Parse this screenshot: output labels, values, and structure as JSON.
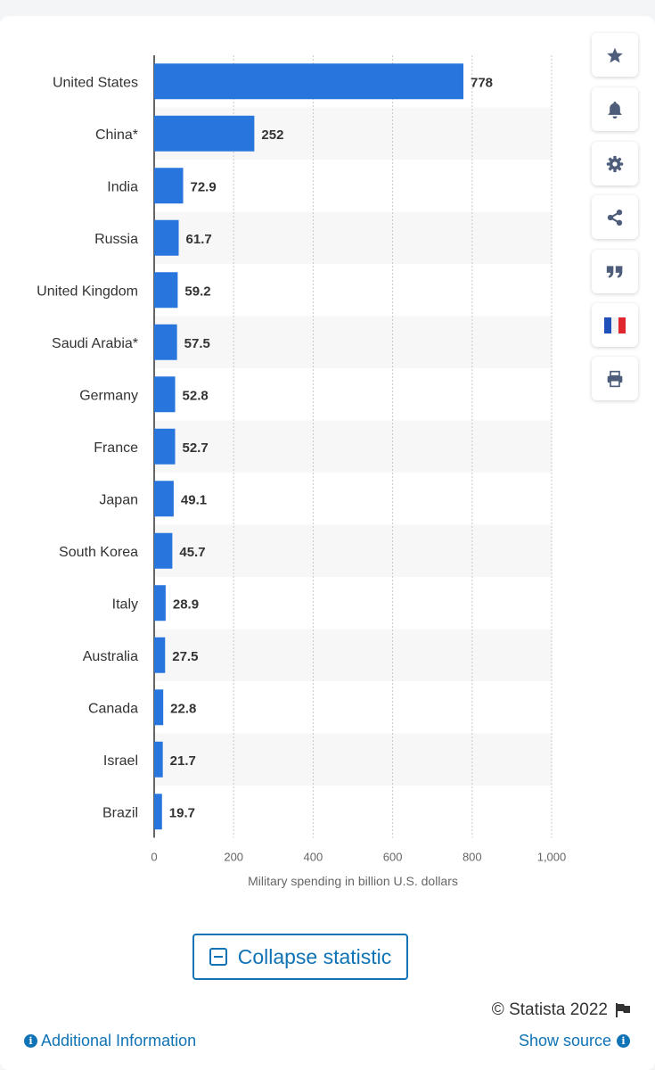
{
  "chart_data": {
    "type": "bar",
    "orientation": "horizontal",
    "categories": [
      "United States",
      "China*",
      "India",
      "Russia",
      "United Kingdom",
      "Saudi Arabia*",
      "Germany",
      "France",
      "Japan",
      "South Korea",
      "Italy",
      "Australia",
      "Canada",
      "Israel",
      "Brazil"
    ],
    "values": [
      778,
      252,
      72.9,
      61.7,
      59.2,
      57.5,
      52.8,
      52.7,
      49.1,
      45.7,
      28.9,
      27.5,
      22.8,
      21.7,
      19.7
    ],
    "value_labels": [
      "778",
      "252",
      "72.9",
      "61.7",
      "59.2",
      "57.5",
      "52.8",
      "52.7",
      "49.1",
      "45.7",
      "28.9",
      "27.5",
      "22.8",
      "21.7",
      "19.7"
    ],
    "xlabel": "Military spending in billion U.S. dollars",
    "xlim": [
      0,
      1000
    ],
    "ticks": [
      0,
      200,
      400,
      600,
      800,
      1000
    ],
    "tick_labels": [
      "0",
      "200",
      "400",
      "600",
      "800",
      "1,000"
    ],
    "grid": true,
    "bar_color": "#2876dd",
    "alt_row_color": "#f7f7f7"
  },
  "toolbar": {
    "buttons": [
      {
        "name": "favorite-button",
        "icon": "star-icon"
      },
      {
        "name": "notification-button",
        "icon": "bell-icon"
      },
      {
        "name": "settings-button",
        "icon": "gear-icon"
      },
      {
        "name": "share-button",
        "icon": "share-icon"
      },
      {
        "name": "cite-button",
        "icon": "quote-icon"
      },
      {
        "name": "language-button",
        "icon": "french-flag-icon"
      },
      {
        "name": "print-button",
        "icon": "printer-icon"
      }
    ]
  },
  "actions": {
    "collapse_label": "Collapse statistic"
  },
  "footer": {
    "copyright": "© Statista 2022",
    "additional_info": "Additional Information",
    "show_source": "Show source"
  },
  "colors": {
    "accent": "#0f73b5",
    "icon": "#4d5d7a"
  }
}
